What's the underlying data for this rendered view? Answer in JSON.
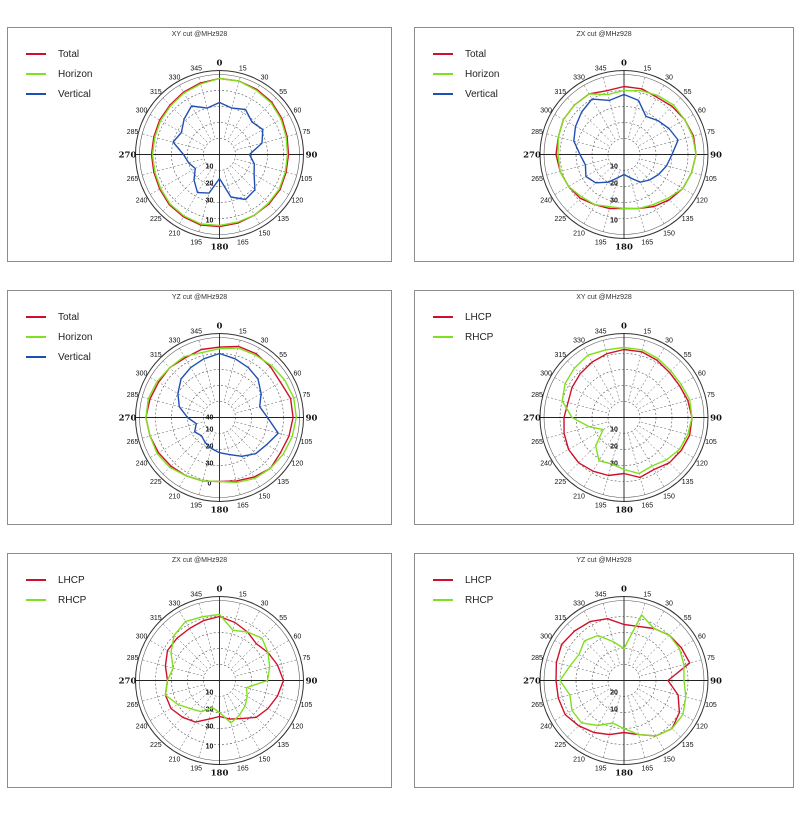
{
  "colors": {
    "red": "#d0102a",
    "green": "#7fe01e",
    "blue": "#1f4fb5"
  },
  "chart_data": [
    {
      "type": "polar-line",
      "title": "XY cut @MHz928",
      "angle_labels": [
        "0",
        "15",
        "30",
        "55",
        "60",
        "75",
        "90",
        "105",
        "120",
        "135",
        "150",
        "165",
        "180",
        "195",
        "210",
        "225",
        "240",
        "265",
        "270",
        "285",
        "300",
        "315",
        "330",
        "345"
      ],
      "radial_labels": [
        "10",
        "20",
        "30"
      ],
      "center_radial_label": "",
      "bottom_radial_label": "10",
      "rlim": [
        -40,
        0
      ],
      "series": [
        {
          "name": "Total",
          "color": "red",
          "values": [
            -2,
            -2,
            -2.5,
            -3,
            -4,
            -5,
            -5.5,
            -5.5,
            -5,
            -5,
            -5,
            -4.5,
            -4,
            -3.5,
            -4,
            -4.5,
            -5.5,
            -6,
            -6,
            -6,
            -5.5,
            -5,
            -4,
            -3
          ]
        },
        {
          "name": "Horizon",
          "color": "green",
          "values": [
            -2,
            -2,
            -3,
            -3.5,
            -4.5,
            -5.5,
            -6,
            -6,
            -5.5,
            -5.5,
            -5,
            -5,
            -4.5,
            -4,
            -4.5,
            -5,
            -6,
            -6.5,
            -6.5,
            -6.5,
            -6,
            -5.5,
            -4.5,
            -3.5
          ]
        },
        {
          "name": "Vertical",
          "color": "blue",
          "values": [
            -14,
            -16,
            -14,
            -17,
            -15,
            -18,
            -25,
            -22,
            -20,
            -15,
            -14,
            -18,
            -28,
            -20,
            -18,
            -22,
            -26,
            -24,
            -22,
            -16,
            -18,
            -15,
            -12,
            -16
          ]
        }
      ]
    },
    {
      "type": "polar-line",
      "title": "ZX cut @MHz928",
      "angle_labels": [
        "0",
        "15",
        "30",
        "55",
        "60",
        "75",
        "90",
        "105",
        "120",
        "135",
        "150",
        "165",
        "180",
        "195",
        "210",
        "225",
        "240",
        "265",
        "270",
        "285",
        "300",
        "315",
        "330",
        "345"
      ],
      "radial_labels": [
        "10",
        "20",
        "30"
      ],
      "center_radial_label": "",
      "bottom_radial_label": "10",
      "rlim": [
        -40,
        0
      ],
      "series": [
        {
          "name": "Total",
          "color": "red",
          "values": [
            -6,
            -6,
            -7,
            -6,
            -5,
            -4,
            -4,
            -5,
            -6,
            -8,
            -10,
            -12,
            -13,
            -12,
            -11,
            -9,
            -8,
            -7,
            -6,
            -6,
            -5,
            -5,
            -5,
            -7
          ]
        },
        {
          "name": "Horizon",
          "color": "green",
          "values": [
            -8,
            -7,
            -6,
            -5,
            -5,
            -4.5,
            -4,
            -5,
            -6,
            -9,
            -11,
            -12,
            -13,
            -13,
            -11,
            -10,
            -8,
            -7,
            -7,
            -6,
            -5,
            -5,
            -5,
            -9
          ]
        },
        {
          "name": "Vertical",
          "color": "blue",
          "values": [
            -10,
            -12,
            -18,
            -16,
            -14,
            -12,
            -16,
            -18,
            -20,
            -22,
            -24,
            -28,
            -30,
            -28,
            -24,
            -20,
            -18,
            -20,
            -18,
            -14,
            -12,
            -10,
            -8,
            -12
          ]
        }
      ]
    },
    {
      "type": "polar-line",
      "title": "YZ cut @MHz928",
      "angle_labels": [
        "0",
        "15",
        "30",
        "55",
        "60",
        "75",
        "90",
        "105",
        "120",
        "135",
        "150",
        "165",
        "180",
        "195",
        "210",
        "225",
        "240",
        "265",
        "270",
        "285",
        "300",
        "315",
        "330",
        "345"
      ],
      "radial_labels": [
        "10",
        "20",
        "30"
      ],
      "center_radial_label": "40",
      "bottom_radial_label": "0",
      "rlim": [
        -50,
        0
      ],
      "series": [
        {
          "name": "Total",
          "color": "red",
          "values": [
            -6,
            -4,
            -4,
            -5,
            -6,
            -4,
            -4,
            -5,
            -6,
            -5,
            -7,
            -9,
            -10,
            -9,
            -8,
            -7,
            -6,
            -5,
            -4,
            -5,
            -6,
            -6,
            -7,
            -6
          ]
        },
        {
          "name": "Horizon",
          "color": "green",
          "values": [
            -7,
            -5,
            -5,
            -4,
            -3,
            -2,
            -2,
            -3,
            -4,
            -5,
            -6,
            -8,
            -10,
            -9,
            -8,
            -6,
            -5,
            -5,
            -4,
            -4,
            -5,
            -6,
            -6,
            -8
          ]
        },
        {
          "name": "Vertical",
          "color": "blue",
          "values": [
            -10,
            -12,
            -14,
            -16,
            -20,
            -24,
            -20,
            -12,
            -16,
            -18,
            -22,
            -26,
            -28,
            -30,
            -32,
            -34,
            -32,
            -35,
            -30,
            -24,
            -20,
            -16,
            -14,
            -12
          ]
        }
      ]
    },
    {
      "type": "polar-line",
      "title": "XY cut @MHz928",
      "angle_labels": [
        "0",
        "15",
        "30",
        "55",
        "60",
        "75",
        "90",
        "105",
        "120",
        "135",
        "150",
        "165",
        "180",
        "195",
        "210",
        "225",
        "240",
        "265",
        "270",
        "285",
        "300",
        "315",
        "330",
        "345"
      ],
      "radial_labels": [
        "10",
        "20",
        "30"
      ],
      "center_radial_label": "",
      "bottom_radial_label": "",
      "rlim": [
        -40,
        0
      ],
      "series": [
        {
          "name": "LHCP",
          "color": "red",
          "values": [
            -6,
            -6,
            -7,
            -8,
            -8,
            -7,
            -6,
            -6,
            -7,
            -8,
            -10,
            -9,
            -12,
            -10,
            -9,
            -8,
            -8,
            -9,
            -10,
            -11,
            -10,
            -9,
            -8,
            -7
          ]
        },
        {
          "name": "RHCP",
          "color": "green",
          "values": [
            -5,
            -5,
            -6,
            -7,
            -7,
            -6,
            -6,
            -7,
            -8,
            -10,
            -12,
            -11,
            -14,
            -16,
            -15,
            -20,
            -28,
            -22,
            -14,
            -8,
            -6,
            -5,
            -4,
            -5
          ]
        }
      ]
    },
    {
      "type": "polar-line",
      "title": "ZX cut @MHz928",
      "angle_labels": [
        "0",
        "15",
        "30",
        "55",
        "60",
        "75",
        "90",
        "105",
        "120",
        "135",
        "150",
        "165",
        "180",
        "195",
        "210",
        "225",
        "240",
        "265",
        "270",
        "285",
        "300",
        "315",
        "330",
        "345"
      ],
      "radial_labels": [
        "10",
        "20",
        "30"
      ],
      "center_radial_label": "",
      "bottom_radial_label": "10",
      "rlim": [
        -40,
        0
      ],
      "series": [
        {
          "name": "LHCP",
          "color": "red",
          "values": [
            -8,
            -10,
            -12,
            -14,
            -12,
            -10,
            -8,
            -10,
            -12,
            -14,
            -18,
            -20,
            -22,
            -20,
            -16,
            -14,
            -12,
            -12,
            -14,
            -12,
            -10,
            -10,
            -10,
            -9
          ]
        },
        {
          "name": "RHCP",
          "color": "green",
          "values": [
            -7,
            -14,
            -12,
            -10,
            -12,
            -14,
            -16,
            -26,
            -24,
            -22,
            -20,
            -18,
            -24,
            -26,
            -22,
            -20,
            -16,
            -12,
            -14,
            -16,
            -12,
            -8,
            -6,
            -7
          ]
        }
      ]
    },
    {
      "type": "polar-line",
      "title": "YZ cut @MHz928",
      "angle_labels": [
        "0",
        "15",
        "30",
        "55",
        "60",
        "75",
        "90",
        "105",
        "120",
        "135",
        "150",
        "165",
        "180",
        "195",
        "210",
        "225",
        "240",
        "265",
        "270",
        "285",
        "300",
        "315",
        "330",
        "345"
      ],
      "radial_labels": [
        "20",
        "10"
      ],
      "center_radial_label": "",
      "bottom_radial_label": "",
      "rlim": [
        -40,
        0
      ],
      "series": [
        {
          "name": "LHCP",
          "color": "red",
          "values": [
            -12,
            -12,
            -10,
            -8,
            -7,
            -6,
            -18,
            -12,
            -8,
            -6,
            -8,
            -12,
            -14,
            -12,
            -10,
            -8,
            -6,
            -6,
            -6,
            -5,
            -4,
            -5,
            -6,
            -8
          ]
        },
        {
          "name": "RHCP",
          "color": "green",
          "values": [
            -24,
            -6,
            -10,
            -8,
            -8,
            -9,
            -10,
            -8,
            -6,
            -6,
            -8,
            -12,
            -16,
            -18,
            -14,
            -10,
            -10,
            -12,
            -8,
            -12,
            -14,
            -12,
            -14,
            -20
          ]
        }
      ]
    }
  ]
}
